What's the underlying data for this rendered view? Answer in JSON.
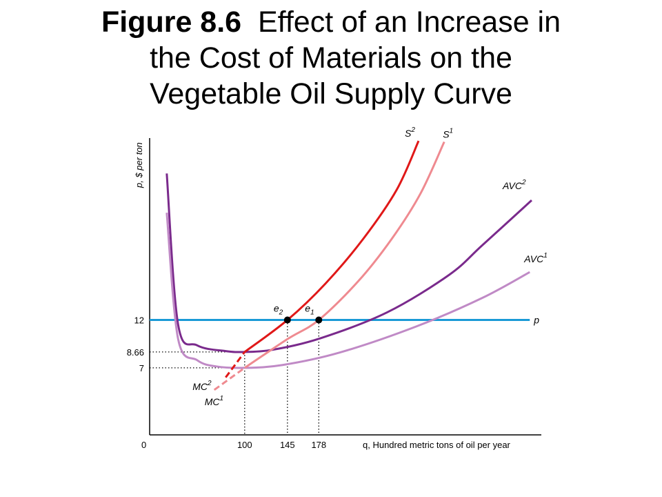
{
  "title": {
    "bold": "Figure 8.6",
    "rest_line1": "Effect of an Increase in",
    "line2": "the Cost of Materials on the",
    "line3": "Vegetable Oil Supply Curve"
  },
  "chart_data": {
    "type": "line",
    "xlabel": "q, Hundred metric tons of oil per year",
    "ylabel": "p, $ per ton",
    "origin_label": "0",
    "x_ticks": [
      100,
      145,
      178
    ],
    "y_ticks": [
      7,
      8.66,
      12
    ],
    "y_tick_labels": [
      "7",
      "8.66",
      "12"
    ],
    "price_line": {
      "name": "p",
      "value": 12,
      "color": "#1a9ad6"
    },
    "series": [
      {
        "name": "AVC2",
        "base": "AVC",
        "sup": "2",
        "color": "#7a2a8c",
        "points": [
          [
            18,
            27.3
          ],
          [
            30,
            11.5
          ],
          [
            50,
            9.35
          ],
          [
            80,
            8.75
          ],
          [
            100,
            8.66
          ],
          [
            130,
            8.9
          ],
          [
            180,
            10.1
          ],
          [
            250,
            12.8
          ],
          [
            315,
            16.7
          ],
          [
            350,
            19.8
          ],
          [
            402,
            24.5
          ]
        ]
      },
      {
        "name": "AVC1",
        "base": "AVC",
        "sup": "1",
        "color": "#c08ac6",
        "points": [
          [
            18,
            23.2
          ],
          [
            30,
            10.0
          ],
          [
            50,
            7.8
          ],
          [
            70,
            7.15
          ],
          [
            100,
            7.0
          ],
          [
            140,
            7.3
          ],
          [
            200,
            8.6
          ],
          [
            280,
            11.3
          ],
          [
            350,
            14.3
          ],
          [
            400,
            17.0
          ]
        ]
      },
      {
        "name": "S2",
        "base": "S",
        "sup": "2",
        "color": "#e01818",
        "points": [
          [
            100,
            8.66
          ],
          [
            145,
            12
          ],
          [
            185,
            15.8
          ],
          [
            225,
            20.5
          ],
          [
            260,
            25.6
          ],
          [
            283,
            30.7
          ]
        ]
      },
      {
        "name": "S1",
        "base": "S",
        "sup": "1",
        "color": "#ef8a90",
        "points": [
          [
            100,
            7.0
          ],
          [
            145,
            10.0
          ],
          [
            178,
            12
          ],
          [
            220,
            16.1
          ],
          [
            255,
            20.5
          ],
          [
            285,
            25.2
          ],
          [
            310,
            30.6
          ]
        ]
      }
    ],
    "mc_segments": [
      {
        "name": "MC2",
        "base": "MC",
        "sup": "2",
        "color": "#e01818",
        "points": [
          [
            80,
            6.0
          ],
          [
            100,
            8.66
          ]
        ]
      },
      {
        "name": "MC1",
        "base": "MC",
        "sup": "1",
        "color": "#ef8a90",
        "points": [
          [
            68,
            4.7
          ],
          [
            100,
            7.0
          ]
        ]
      }
    ],
    "equilibrium_points": [
      {
        "name": "e2",
        "base": "e",
        "sub": "2",
        "q": 145,
        "p": 12
      },
      {
        "name": "e1",
        "base": "e",
        "sub": "1",
        "q": 178,
        "p": 12
      }
    ],
    "xlim": [
      0,
      410
    ],
    "ylim": [
      0,
      31
    ],
    "grid": false,
    "reference_lines": "dotted"
  }
}
